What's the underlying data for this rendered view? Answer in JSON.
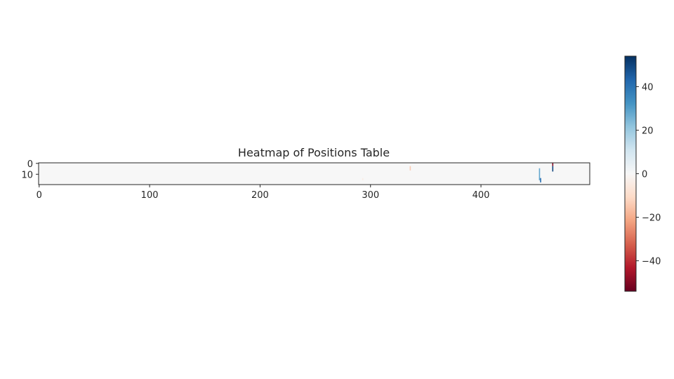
{
  "chart_data": {
    "type": "heatmap",
    "title": "Heatmap of Positions Table",
    "xlabel": "",
    "ylabel": "",
    "n_cols": 499,
    "n_rows": 20,
    "xlim": [
      -0.5,
      498.5
    ],
    "ylim": [
      19.5,
      -0.5
    ],
    "xticks": [
      0,
      100,
      200,
      300,
      400
    ],
    "yticks": [
      0,
      10
    ],
    "colormap": "RdBu",
    "background_value": 0,
    "grid": false,
    "cells": [
      {
        "col": 293,
        "row_start": 14,
        "row_end": 15,
        "value": -4
      },
      {
        "col": 336,
        "row_start": 3,
        "row_end": 6,
        "value": -14
      },
      {
        "col": 453,
        "row_start": 5,
        "row_end": 15,
        "value": 28
      },
      {
        "col": 454,
        "row_start": 14,
        "row_end": 17,
        "value": 42
      },
      {
        "col": 465,
        "row_start": 0,
        "row_end": 2,
        "value": -50
      },
      {
        "col": 465,
        "row_start": 3,
        "row_end": 7,
        "value": 50
      }
    ],
    "colorbar": {
      "vmin": -54,
      "vmax": 54,
      "ticks": [
        -40,
        -20,
        0,
        20,
        40
      ],
      "tick_labels": [
        "−40",
        "−20",
        "0",
        "20",
        "40"
      ],
      "position": "right"
    }
  },
  "colors": {
    "background_cell": "#f7f7f7",
    "axis": "#262626"
  }
}
